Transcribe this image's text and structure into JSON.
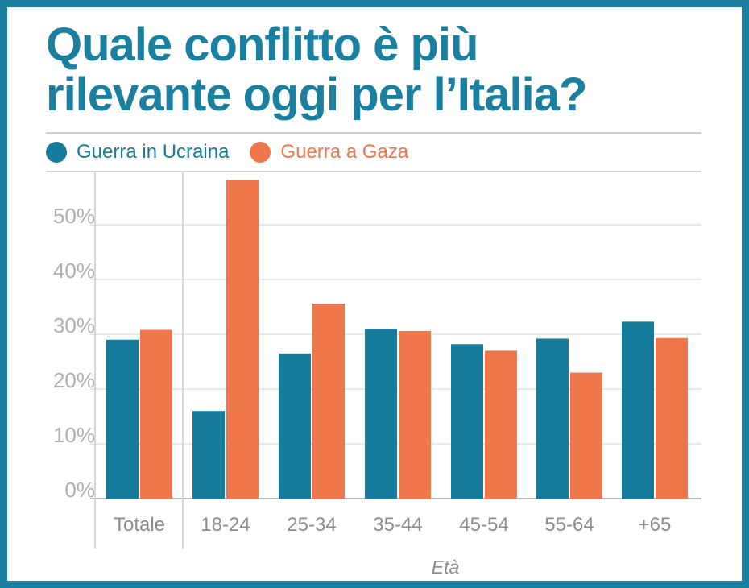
{
  "title_line1": "Quale conflitto è più",
  "title_line2": "rilevante oggi per l’Italia?",
  "colors": {
    "frame": "#1b7f9f",
    "ucraina": "#177c9c",
    "gaza": "#ef774b"
  },
  "chart_data": {
    "type": "bar",
    "title": "Quale conflitto è più rilevante oggi per l’Italia?",
    "xlabel": "Età",
    "ylabel": "",
    "ylim": [
      0,
      60
    ],
    "yticks": [
      "0%",
      "10%",
      "20%",
      "30%",
      "40%",
      "50%"
    ],
    "categories": [
      "Totale",
      "18-24",
      "25-34",
      "35-44",
      "45-54",
      "55-64",
      "+65"
    ],
    "series": [
      {
        "name": "Guerra in Ucraina",
        "color": "#177c9c",
        "values": [
          29,
          16,
          26.5,
          31,
          28.2,
          29.2,
          32.3
        ]
      },
      {
        "name": "Guerra a Gaza",
        "color": "#ef774b",
        "values": [
          30.8,
          58.2,
          35.6,
          30.6,
          27,
          23,
          29.3
        ]
      }
    ],
    "grid": true,
    "legend": "top-left"
  }
}
